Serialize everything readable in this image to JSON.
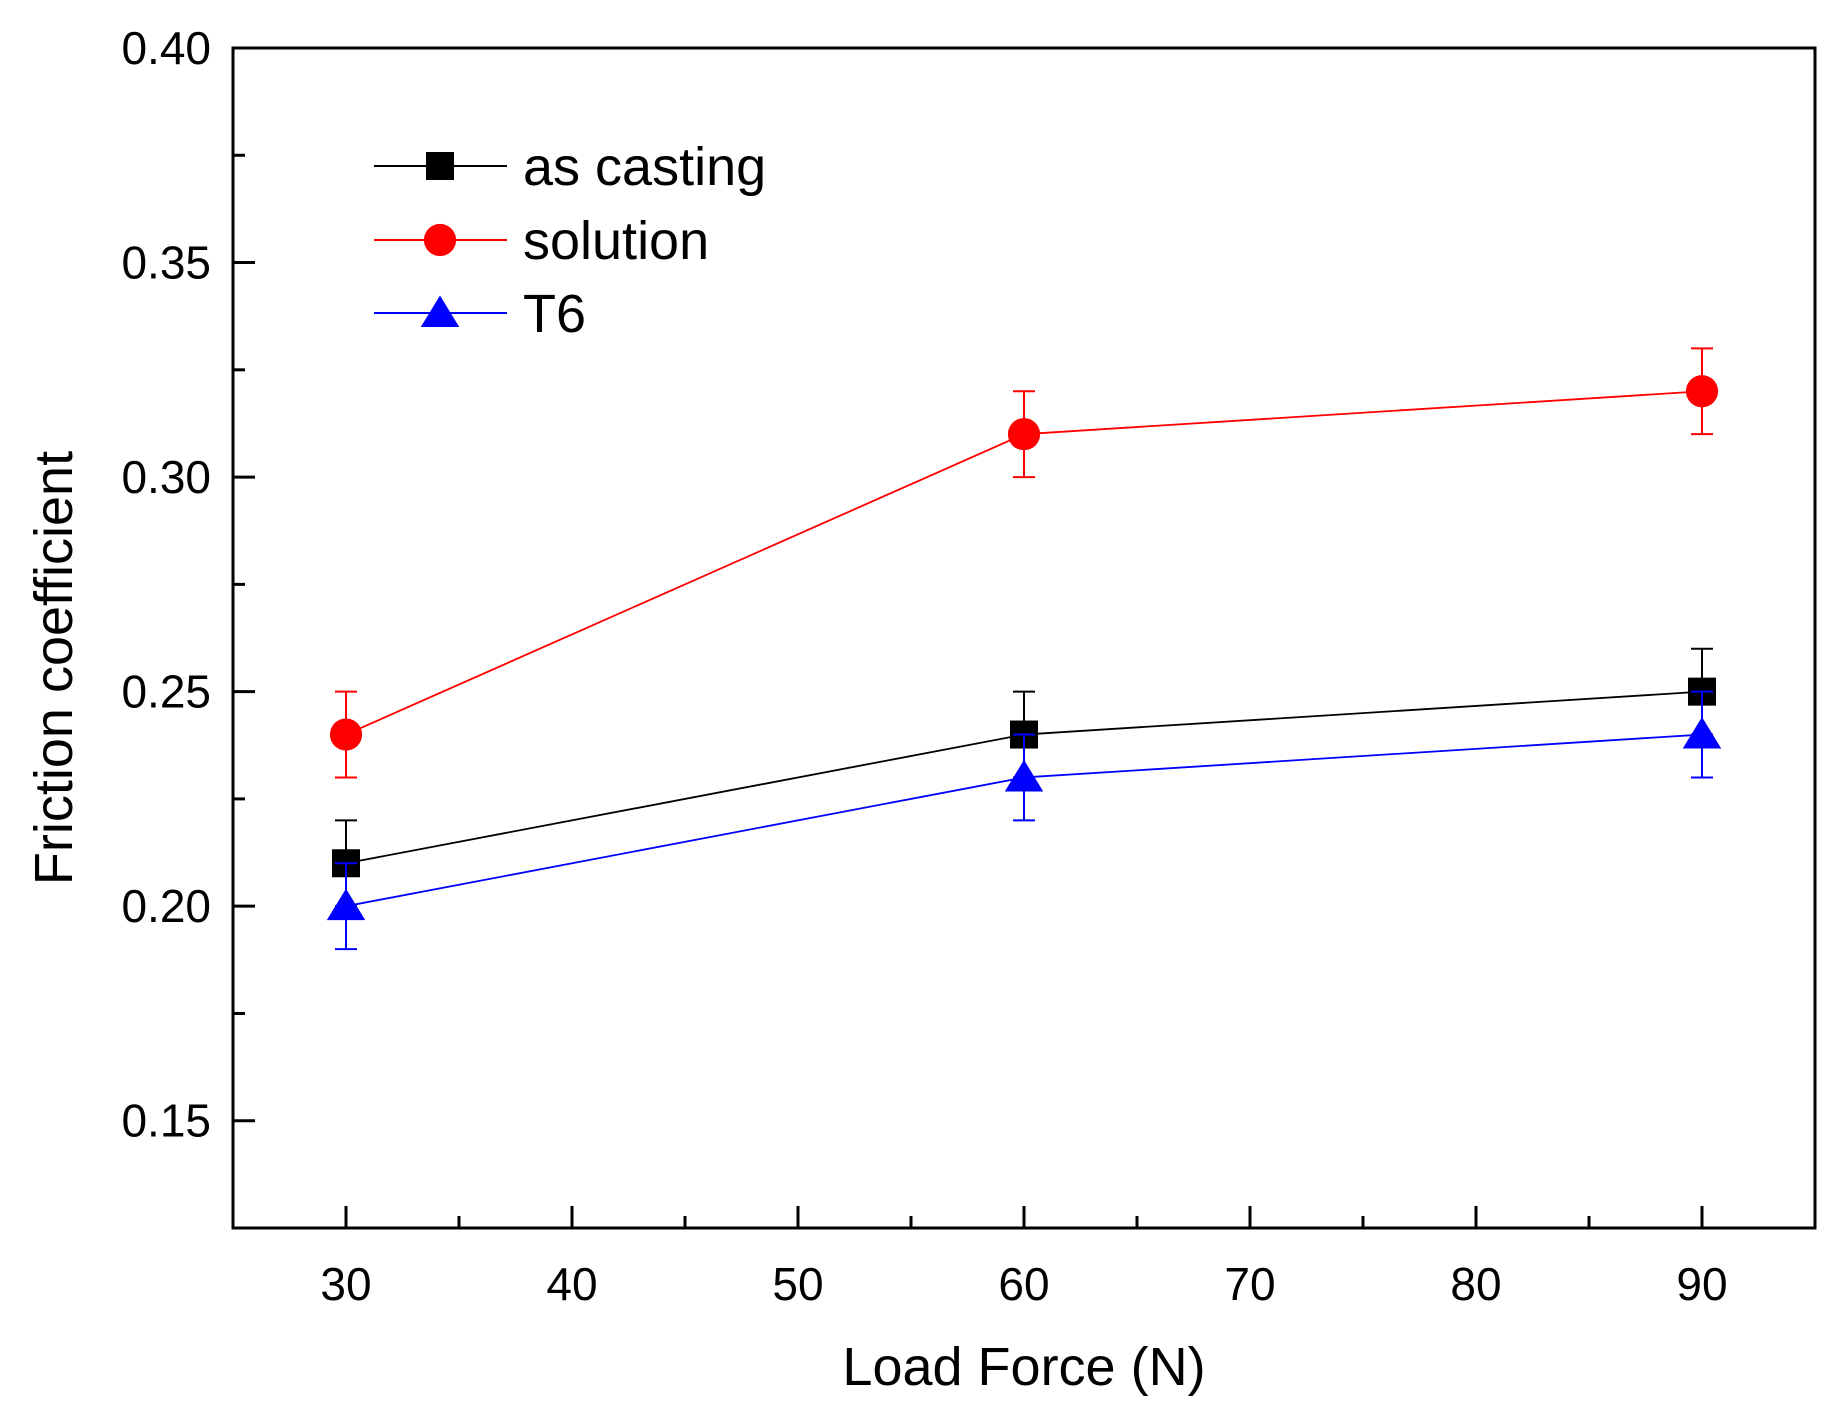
{
  "chart_data": {
    "type": "line",
    "title": "",
    "xlabel": "Load Force (N)",
    "ylabel": "Friction coefficient",
    "xlim": [
      25,
      95
    ],
    "ylim": [
      0.125,
      0.4
    ],
    "xticks": [
      30,
      40,
      50,
      60,
      70,
      80,
      90
    ],
    "xtick_labels": [
      "30",
      "40",
      "50",
      "60",
      "70",
      "80",
      "90"
    ],
    "xminor": [
      35,
      45,
      55,
      65,
      75,
      85
    ],
    "yticks": [
      0.15,
      0.2,
      0.25,
      0.3,
      0.35,
      0.4
    ],
    "ytick_labels": [
      "0.15",
      "0.20",
      "0.25",
      "0.30",
      "0.35",
      "0.40"
    ],
    "yminor": [
      0.175,
      0.225,
      0.275,
      0.325,
      0.375
    ],
    "grid": false,
    "legend_position": "top-left",
    "x": [
      30,
      60,
      90
    ],
    "series": [
      {
        "name": "as casting",
        "color": "#000000",
        "marker": "square",
        "values": [
          0.21,
          0.24,
          0.25
        ],
        "errors": [
          0.01,
          0.01,
          0.01
        ]
      },
      {
        "name": "solution",
        "color": "#ff0000",
        "marker": "circle",
        "values": [
          0.24,
          0.31,
          0.32
        ],
        "errors": [
          0.01,
          0.01,
          0.01
        ]
      },
      {
        "name": "T6",
        "color": "#0000ff",
        "marker": "triangle",
        "values": [
          0.2,
          0.23,
          0.24
        ],
        "errors": [
          0.01,
          0.01,
          0.01
        ]
      }
    ]
  }
}
